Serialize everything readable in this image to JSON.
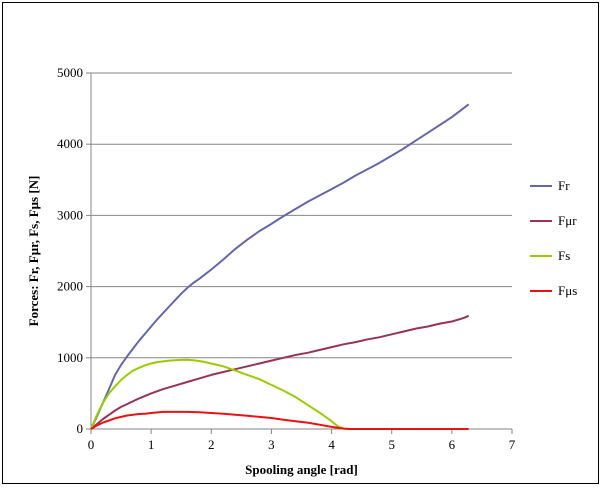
{
  "chart_data": {
    "type": "line",
    "title": "",
    "xlabel": "Spooling angle [rad]",
    "ylabel": "Forces: Fr, Fμr, Fs, Fμs [N]",
    "xlim": [
      0,
      7
    ],
    "ylim": [
      0,
      5000
    ],
    "xticks": [
      "0",
      "1",
      "2",
      "3",
      "4",
      "5",
      "6",
      "7"
    ],
    "yticks": [
      "0",
      "1000",
      "2000",
      "3000",
      "4000",
      "5000"
    ],
    "grid": "horizontal",
    "legend_position": "right",
    "series": [
      {
        "name": "Fr",
        "color": "#6666AA",
        "x": [
          0,
          0.1,
          0.2,
          0.3,
          0.4,
          0.5,
          0.6,
          0.7,
          0.8,
          0.9,
          1.0,
          1.1,
          1.2,
          1.3,
          1.4,
          1.5,
          1.6,
          1.7,
          1.8,
          2.0,
          2.2,
          2.4,
          2.6,
          2.8,
          3.0,
          3.2,
          3.4,
          3.6,
          3.8,
          4.0,
          4.2,
          4.4,
          4.6,
          4.8,
          5.0,
          5.2,
          5.4,
          5.6,
          5.8,
          6.0,
          6.2,
          6.28
        ],
        "values": [
          0,
          180,
          370,
          560,
          760,
          900,
          1020,
          1130,
          1240,
          1340,
          1440,
          1540,
          1630,
          1720,
          1810,
          1900,
          1980,
          2050,
          2110,
          2240,
          2380,
          2530,
          2660,
          2780,
          2880,
          2990,
          3090,
          3190,
          3280,
          3370,
          3460,
          3560,
          3650,
          3740,
          3840,
          3940,
          4050,
          4160,
          4270,
          4380,
          4510,
          4560
        ]
      },
      {
        "name": "Fμr",
        "color": "#993355",
        "x": [
          0,
          0.1,
          0.2,
          0.3,
          0.4,
          0.5,
          0.6,
          0.8,
          1.0,
          1.2,
          1.4,
          1.6,
          1.8,
          2.0,
          2.2,
          2.4,
          2.6,
          2.8,
          3.0,
          3.2,
          3.4,
          3.6,
          3.8,
          4.0,
          4.2,
          4.4,
          4.6,
          4.8,
          5.0,
          5.2,
          5.4,
          5.6,
          5.8,
          6.0,
          6.2,
          6.28
        ],
        "values": [
          0,
          70,
          140,
          200,
          260,
          310,
          350,
          430,
          500,
          560,
          610,
          660,
          710,
          760,
          800,
          840,
          880,
          920,
          960,
          1000,
          1040,
          1070,
          1110,
          1150,
          1190,
          1220,
          1260,
          1290,
          1330,
          1370,
          1410,
          1440,
          1480,
          1510,
          1560,
          1590
        ]
      },
      {
        "name": "Fs",
        "color": "#99CC00",
        "x": [
          0,
          0.1,
          0.2,
          0.3,
          0.4,
          0.5,
          0.6,
          0.7,
          0.8,
          0.9,
          1.0,
          1.1,
          1.2,
          1.3,
          1.4,
          1.5,
          1.6,
          1.7,
          1.8,
          1.9,
          2.0,
          2.2,
          2.4,
          2.6,
          2.8,
          3.0,
          3.2,
          3.4,
          3.6,
          3.8,
          4.0,
          4.1,
          4.2,
          4.3
        ],
        "values": [
          0,
          200,
          370,
          500,
          600,
          690,
          760,
          820,
          860,
          895,
          920,
          940,
          950,
          960,
          965,
          970,
          972,
          965,
          955,
          940,
          920,
          880,
          820,
          760,
          700,
          620,
          540,
          450,
          340,
          230,
          110,
          40,
          5,
          0
        ]
      },
      {
        "name": "Fμs",
        "color": "#EE1111",
        "x": [
          0,
          0.1,
          0.2,
          0.3,
          0.4,
          0.5,
          0.6,
          0.7,
          0.8,
          0.9,
          1.0,
          1.2,
          1.4,
          1.6,
          1.8,
          2.0,
          2.2,
          2.4,
          2.6,
          2.8,
          3.0,
          3.2,
          3.4,
          3.6,
          3.8,
          4.0,
          4.2,
          4.3,
          5.0,
          6.0,
          6.28
        ],
        "values": [
          0,
          50,
          90,
          120,
          150,
          170,
          190,
          200,
          210,
          215,
          225,
          240,
          240,
          240,
          235,
          225,
          215,
          200,
          185,
          170,
          155,
          130,
          110,
          90,
          60,
          30,
          5,
          0,
          0,
          0,
          0
        ]
      }
    ]
  }
}
